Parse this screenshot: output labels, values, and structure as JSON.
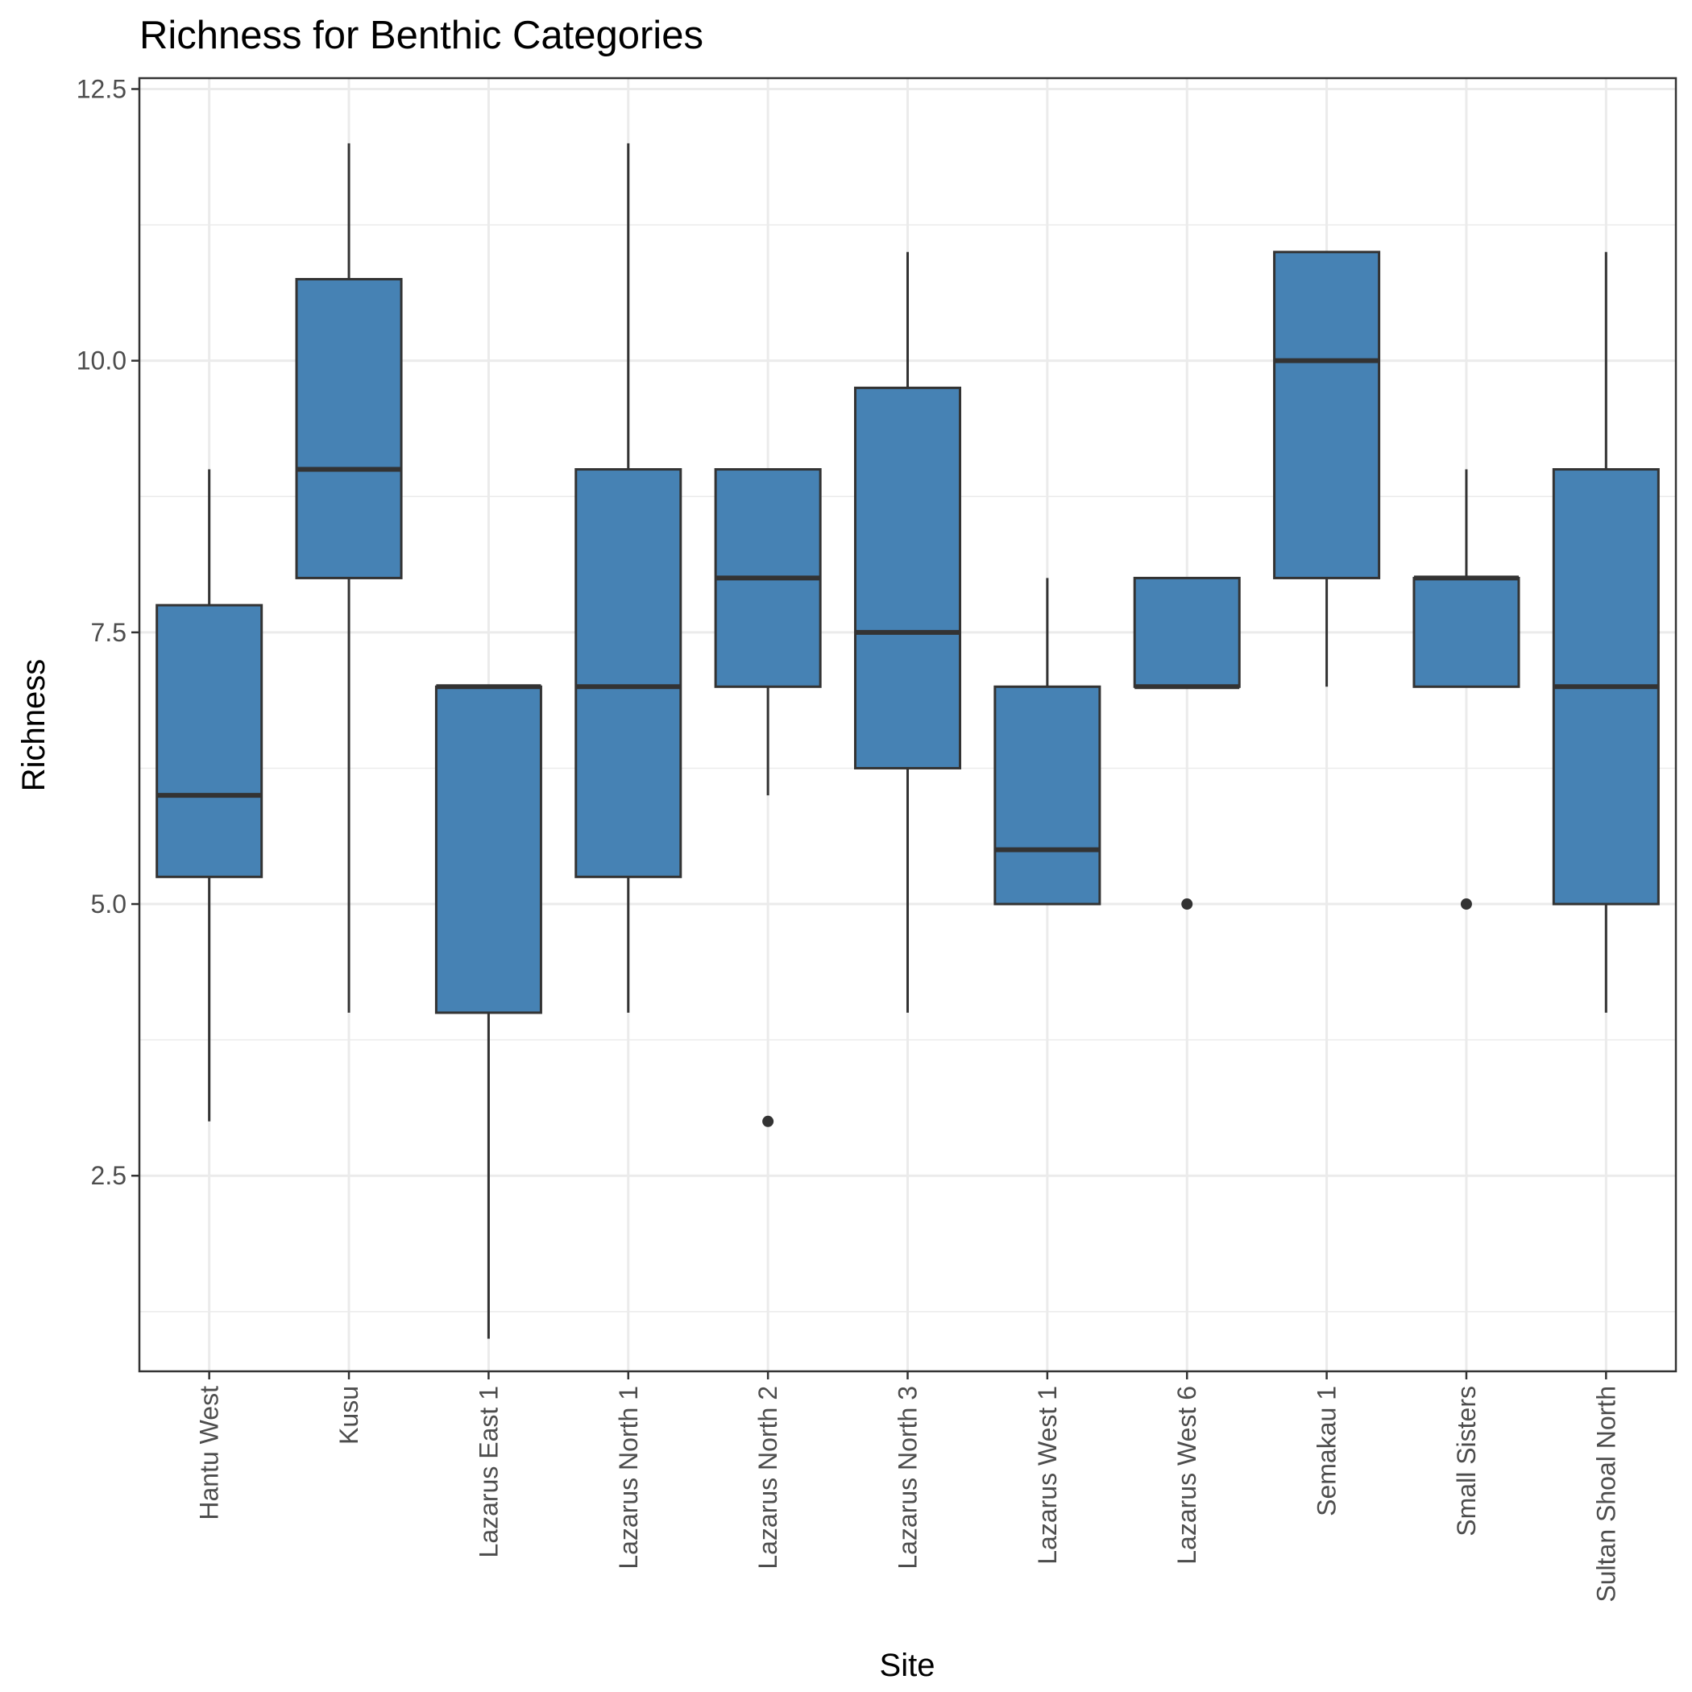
{
  "chart_data": {
    "type": "box",
    "title": "Richness for Benthic Categories",
    "xlabel": "Site",
    "ylabel": "Richness",
    "ylim": [
      0.7,
      12.6
    ],
    "y_ticks": [
      2.5,
      5.0,
      7.5,
      10.0,
      12.5
    ],
    "y_tick_labels": [
      "2.5",
      "5.0",
      "7.5",
      "10.0",
      "12.5"
    ],
    "grid": true,
    "legend": "none",
    "colors": {
      "fill": "#4682B4",
      "stroke": "#333333",
      "grid": "#ebebeb",
      "panel_border": "#333333"
    },
    "categories": [
      "Hantu West",
      "Kusu",
      "Lazarus East 1",
      "Lazarus North 1",
      "Lazarus North 2",
      "Lazarus North 3",
      "Lazarus West 1",
      "Lazarus West 6",
      "Semakau 1",
      "Small Sisters",
      "Sultan Shoal North"
    ],
    "boxes": [
      {
        "category": "Hantu West",
        "whisker_low": 3,
        "q1": 5.25,
        "median": 6,
        "q3": 7.75,
        "whisker_high": 9,
        "outliers": []
      },
      {
        "category": "Kusu",
        "whisker_low": 4,
        "q1": 8,
        "median": 9,
        "q3": 10.75,
        "whisker_high": 12,
        "outliers": []
      },
      {
        "category": "Lazarus East 1",
        "whisker_low": 1,
        "q1": 4,
        "median": 7,
        "q3": 7,
        "whisker_high": 7,
        "outliers": []
      },
      {
        "category": "Lazarus North 1",
        "whisker_low": 4,
        "q1": 5.25,
        "median": 7,
        "q3": 9,
        "whisker_high": 12,
        "outliers": []
      },
      {
        "category": "Lazarus North 2",
        "whisker_low": 6,
        "q1": 7,
        "median": 8,
        "q3": 9,
        "whisker_high": 9,
        "outliers": [
          3
        ]
      },
      {
        "category": "Lazarus North 3",
        "whisker_low": 4,
        "q1": 6.25,
        "median": 7.5,
        "q3": 9.75,
        "whisker_high": 11,
        "outliers": []
      },
      {
        "category": "Lazarus West 1",
        "whisker_low": 5,
        "q1": 5,
        "median": 5.5,
        "q3": 7,
        "whisker_high": 8,
        "outliers": []
      },
      {
        "category": "Lazarus West 6",
        "whisker_low": 7,
        "q1": 7,
        "median": 7,
        "q3": 8,
        "whisker_high": 8,
        "outliers": [
          5
        ]
      },
      {
        "category": "Semakau 1",
        "whisker_low": 7,
        "q1": 8,
        "median": 10,
        "q3": 11,
        "whisker_high": 11,
        "outliers": []
      },
      {
        "category": "Small Sisters",
        "whisker_low": 7,
        "q1": 7,
        "median": 8,
        "q3": 8,
        "whisker_high": 9,
        "outliers": [
          5
        ]
      },
      {
        "category": "Sultan Shoal North",
        "whisker_low": 4,
        "q1": 5,
        "median": 7,
        "q3": 9,
        "whisker_high": 11,
        "outliers": []
      }
    ]
  }
}
